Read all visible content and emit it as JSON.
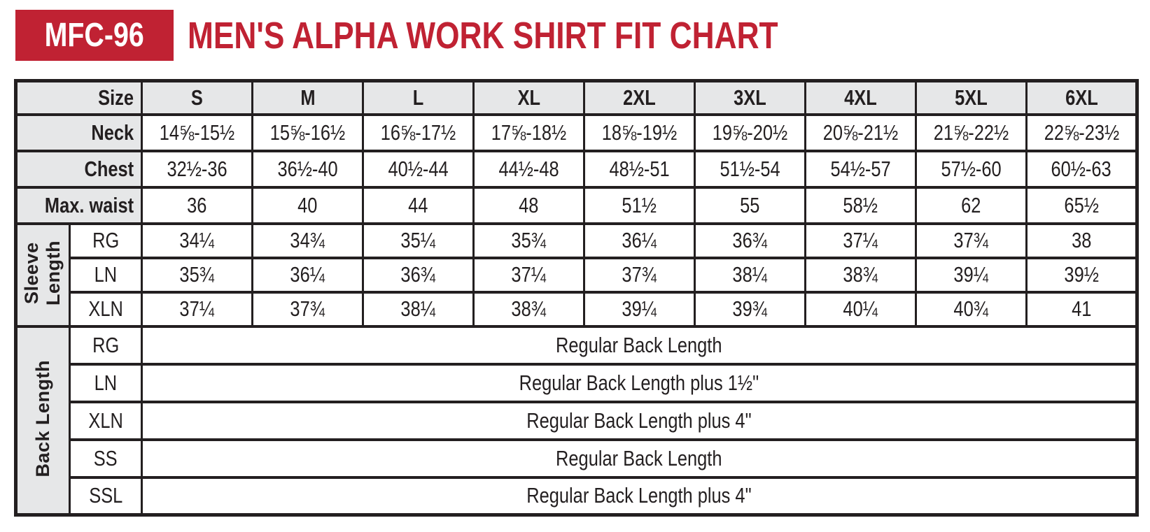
{
  "colors": {
    "accent_red": "#C02233",
    "ink": "#231F20",
    "cell_gray": "#E6E7E8"
  },
  "header": {
    "product_code": "MFC-96",
    "title": "MEN'S ALPHA WORK SHIRT FIT CHART"
  },
  "chart_data": {
    "type": "table",
    "size_header_label": "Size",
    "sizes": [
      "S",
      "M",
      "L",
      "XL",
      "2XL",
      "3XL",
      "4XL",
      "5XL",
      "6XL"
    ],
    "measurement_rows": [
      {
        "label": "Neck",
        "values": [
          "14⅝-15½",
          "15⅝-16½",
          "16⅝-17½",
          "17⅝-18½",
          "18⅝-19½",
          "19⅝-20½",
          "20⅝-21½",
          "21⅝-22½",
          "22⅝-23½"
        ]
      },
      {
        "label": "Chest",
        "values": [
          "32½-36",
          "36½-40",
          "40½-44",
          "44½-48",
          "48½-51",
          "51½-54",
          "54½-57",
          "57½-60",
          "60½-63"
        ]
      },
      {
        "label": "Max. waist",
        "values": [
          "36",
          "40",
          "44",
          "48",
          "51½",
          "55",
          "58½",
          "62",
          "65½"
        ]
      }
    ],
    "sleeve_length": {
      "section_label": "Sleeve\nLength",
      "rows": [
        {
          "label": "RG",
          "values": [
            "34¼",
            "34¾",
            "35¼",
            "35¾",
            "36¼",
            "36¾",
            "37¼",
            "37¾",
            "38"
          ]
        },
        {
          "label": "LN",
          "values": [
            "35¾",
            "36¼",
            "36¾",
            "37¼",
            "37¾",
            "38¼",
            "38¾",
            "39¼",
            "39½"
          ]
        },
        {
          "label": "XLN",
          "values": [
            "37¼",
            "37¾",
            "38¼",
            "38¾",
            "39¼",
            "39¾",
            "40¼",
            "40¾",
            "41"
          ]
        }
      ]
    },
    "back_length": {
      "section_label": "Back Length",
      "rows": [
        {
          "label": "RG",
          "value": "Regular Back Length"
        },
        {
          "label": "LN",
          "value": "Regular Back Length plus 1½\""
        },
        {
          "label": "XLN",
          "value": "Regular Back Length plus 4\""
        },
        {
          "label": "SS",
          "value": "Regular Back Length"
        },
        {
          "label": "SSL",
          "value": "Regular Back Length plus 4\""
        }
      ]
    }
  }
}
